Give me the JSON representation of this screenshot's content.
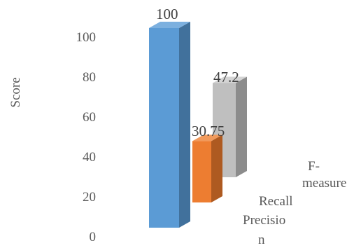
{
  "chart_data": {
    "type": "bar",
    "style": "3d-depth",
    "title": "",
    "xlabel": "",
    "ylabel": "Score",
    "ylim": [
      0,
      100
    ],
    "yticks": [
      0,
      20,
      40,
      60,
      80,
      100
    ],
    "grid": false,
    "legend": "none",
    "categories": [
      "Precision",
      "Recall",
      "F-measure"
    ],
    "category_label_lines": [
      [
        "Precisio",
        "n"
      ],
      [
        "Recall"
      ],
      [
        "F-",
        "measure"
      ]
    ],
    "values": [
      100,
      30.75,
      47.2
    ],
    "data_labels": [
      "100",
      "30.75",
      "47.2"
    ],
    "colors": {
      "front": [
        "#5b9bd5",
        "#ed7d31",
        "#bfbfbf"
      ],
      "side": [
        "#41719c",
        "#ae5a21",
        "#8c8c8c"
      ],
      "top": [
        "#7cb0df",
        "#f19a5c",
        "#d4d4d4"
      ]
    }
  }
}
